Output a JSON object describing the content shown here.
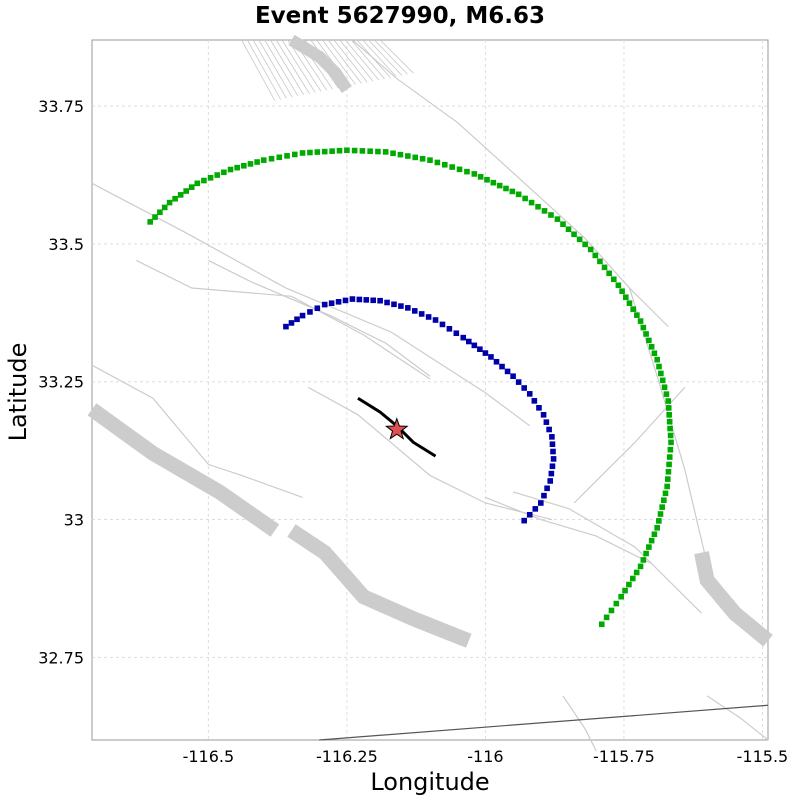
{
  "chart_data": {
    "type": "scatter",
    "title": "Event 5627990, M6.63",
    "xlabel": "Longitude",
    "ylabel": "Latitude",
    "xlim": [
      -116.71,
      -115.49
    ],
    "ylim": [
      32.6,
      33.87
    ],
    "xticks": [
      -116.5,
      -116.25,
      -116,
      -115.75,
      -115.5
    ],
    "xtick_labels": [
      "-116.5",
      "-116.25",
      "-116",
      "-115.75",
      "-115.5"
    ],
    "yticks": [
      32.75,
      33,
      33.25,
      33.5,
      33.75
    ],
    "ytick_labels": [
      "32.75",
      "33",
      "33.25",
      "33.5",
      "33.75"
    ],
    "grid": true,
    "colors": {
      "green": "#00aa00",
      "blue": "#0000aa",
      "faults": "#cccccc",
      "rupture": "#000000",
      "epicenter": "#e05050",
      "boundary": "#555555",
      "grid": "#dddddd"
    },
    "series": [
      {
        "marker": "square",
        "color": "#00aa00",
        "points": [
          [
            -116.605,
            33.54
          ],
          [
            -116.57,
            33.575
          ],
          [
            -116.52,
            33.61
          ],
          [
            -116.46,
            33.635
          ],
          [
            -116.4,
            33.652
          ],
          [
            -116.33,
            33.665
          ],
          [
            -116.25,
            33.67
          ],
          [
            -116.18,
            33.667
          ],
          [
            -116.1,
            33.652
          ],
          [
            -116.02,
            33.627
          ],
          [
            -115.94,
            33.59
          ],
          [
            -115.87,
            33.545
          ],
          [
            -115.81,
            33.49
          ],
          [
            -115.76,
            33.425
          ],
          [
            -115.72,
            33.36
          ],
          [
            -115.69,
            33.29
          ],
          [
            -115.67,
            33.215
          ],
          [
            -115.665,
            33.14
          ],
          [
            -115.672,
            33.06
          ],
          [
            -115.69,
            32.985
          ],
          [
            -115.72,
            32.915
          ],
          [
            -115.755,
            32.86
          ],
          [
            -115.79,
            32.81
          ]
        ]
      },
      {
        "marker": "square",
        "color": "#0000aa",
        "points": [
          [
            -116.36,
            33.35
          ],
          [
            -116.33,
            33.37
          ],
          [
            -116.29,
            33.39
          ],
          [
            -116.24,
            33.4
          ],
          [
            -116.19,
            33.397
          ],
          [
            -116.14,
            33.384
          ],
          [
            -116.09,
            33.362
          ],
          [
            -116.04,
            33.33
          ],
          [
            -115.99,
            33.295
          ],
          [
            -115.95,
            33.26
          ],
          [
            -115.92,
            33.228
          ],
          [
            -115.895,
            33.19
          ],
          [
            -115.88,
            33.15
          ],
          [
            -115.877,
            33.11
          ],
          [
            -115.883,
            33.07
          ],
          [
            -115.9,
            33.03
          ],
          [
            -115.93,
            32.998
          ]
        ]
      }
    ],
    "rupture_trace": [
      [
        -116.23,
        33.22
      ],
      [
        -116.19,
        33.195
      ],
      [
        -116.16,
        33.17
      ],
      [
        -116.13,
        33.14
      ],
      [
        -116.09,
        33.115
      ]
    ],
    "epicenter": [
      -116.16,
      33.163
    ]
  }
}
